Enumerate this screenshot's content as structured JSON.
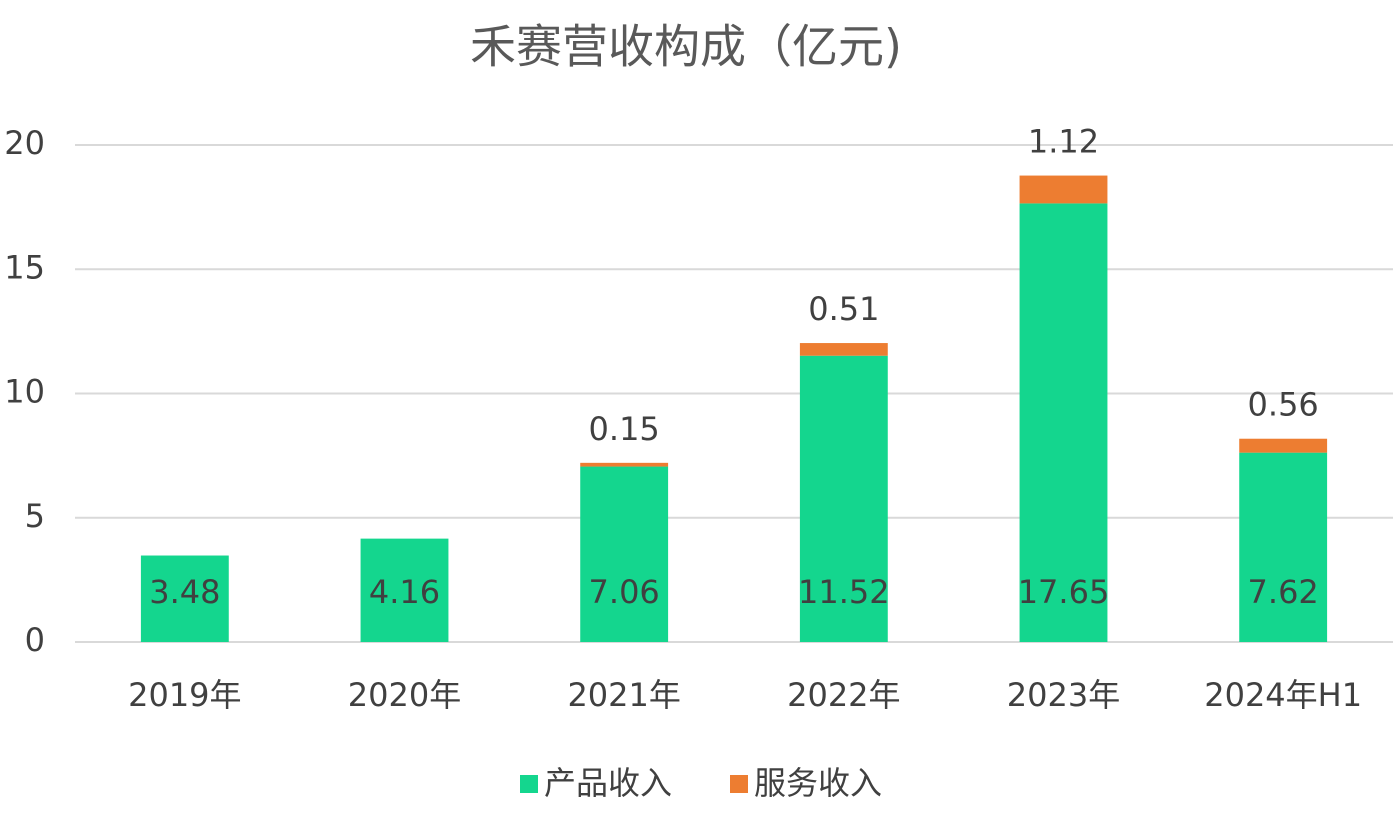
{
  "chart_data": {
    "type": "stacked_bar",
    "title": "禾赛营收构成（亿元)",
    "categories": [
      "2019年",
      "2020年",
      "2021年",
      "2022年",
      "2023年",
      "2024年H1"
    ],
    "series": [
      {
        "name": "产品收入",
        "color": "#14d68e",
        "values": [
          3.48,
          4.16,
          7.06,
          11.52,
          17.65,
          7.62
        ]
      },
      {
        "name": "服务收入",
        "color": "#ed7d31",
        "values": [
          null,
          null,
          0.15,
          0.51,
          1.12,
          0.56
        ]
      }
    ],
    "ylim": [
      0,
      20
    ],
    "yticks": [
      0,
      5,
      10,
      15,
      20
    ],
    "grid": true
  }
}
